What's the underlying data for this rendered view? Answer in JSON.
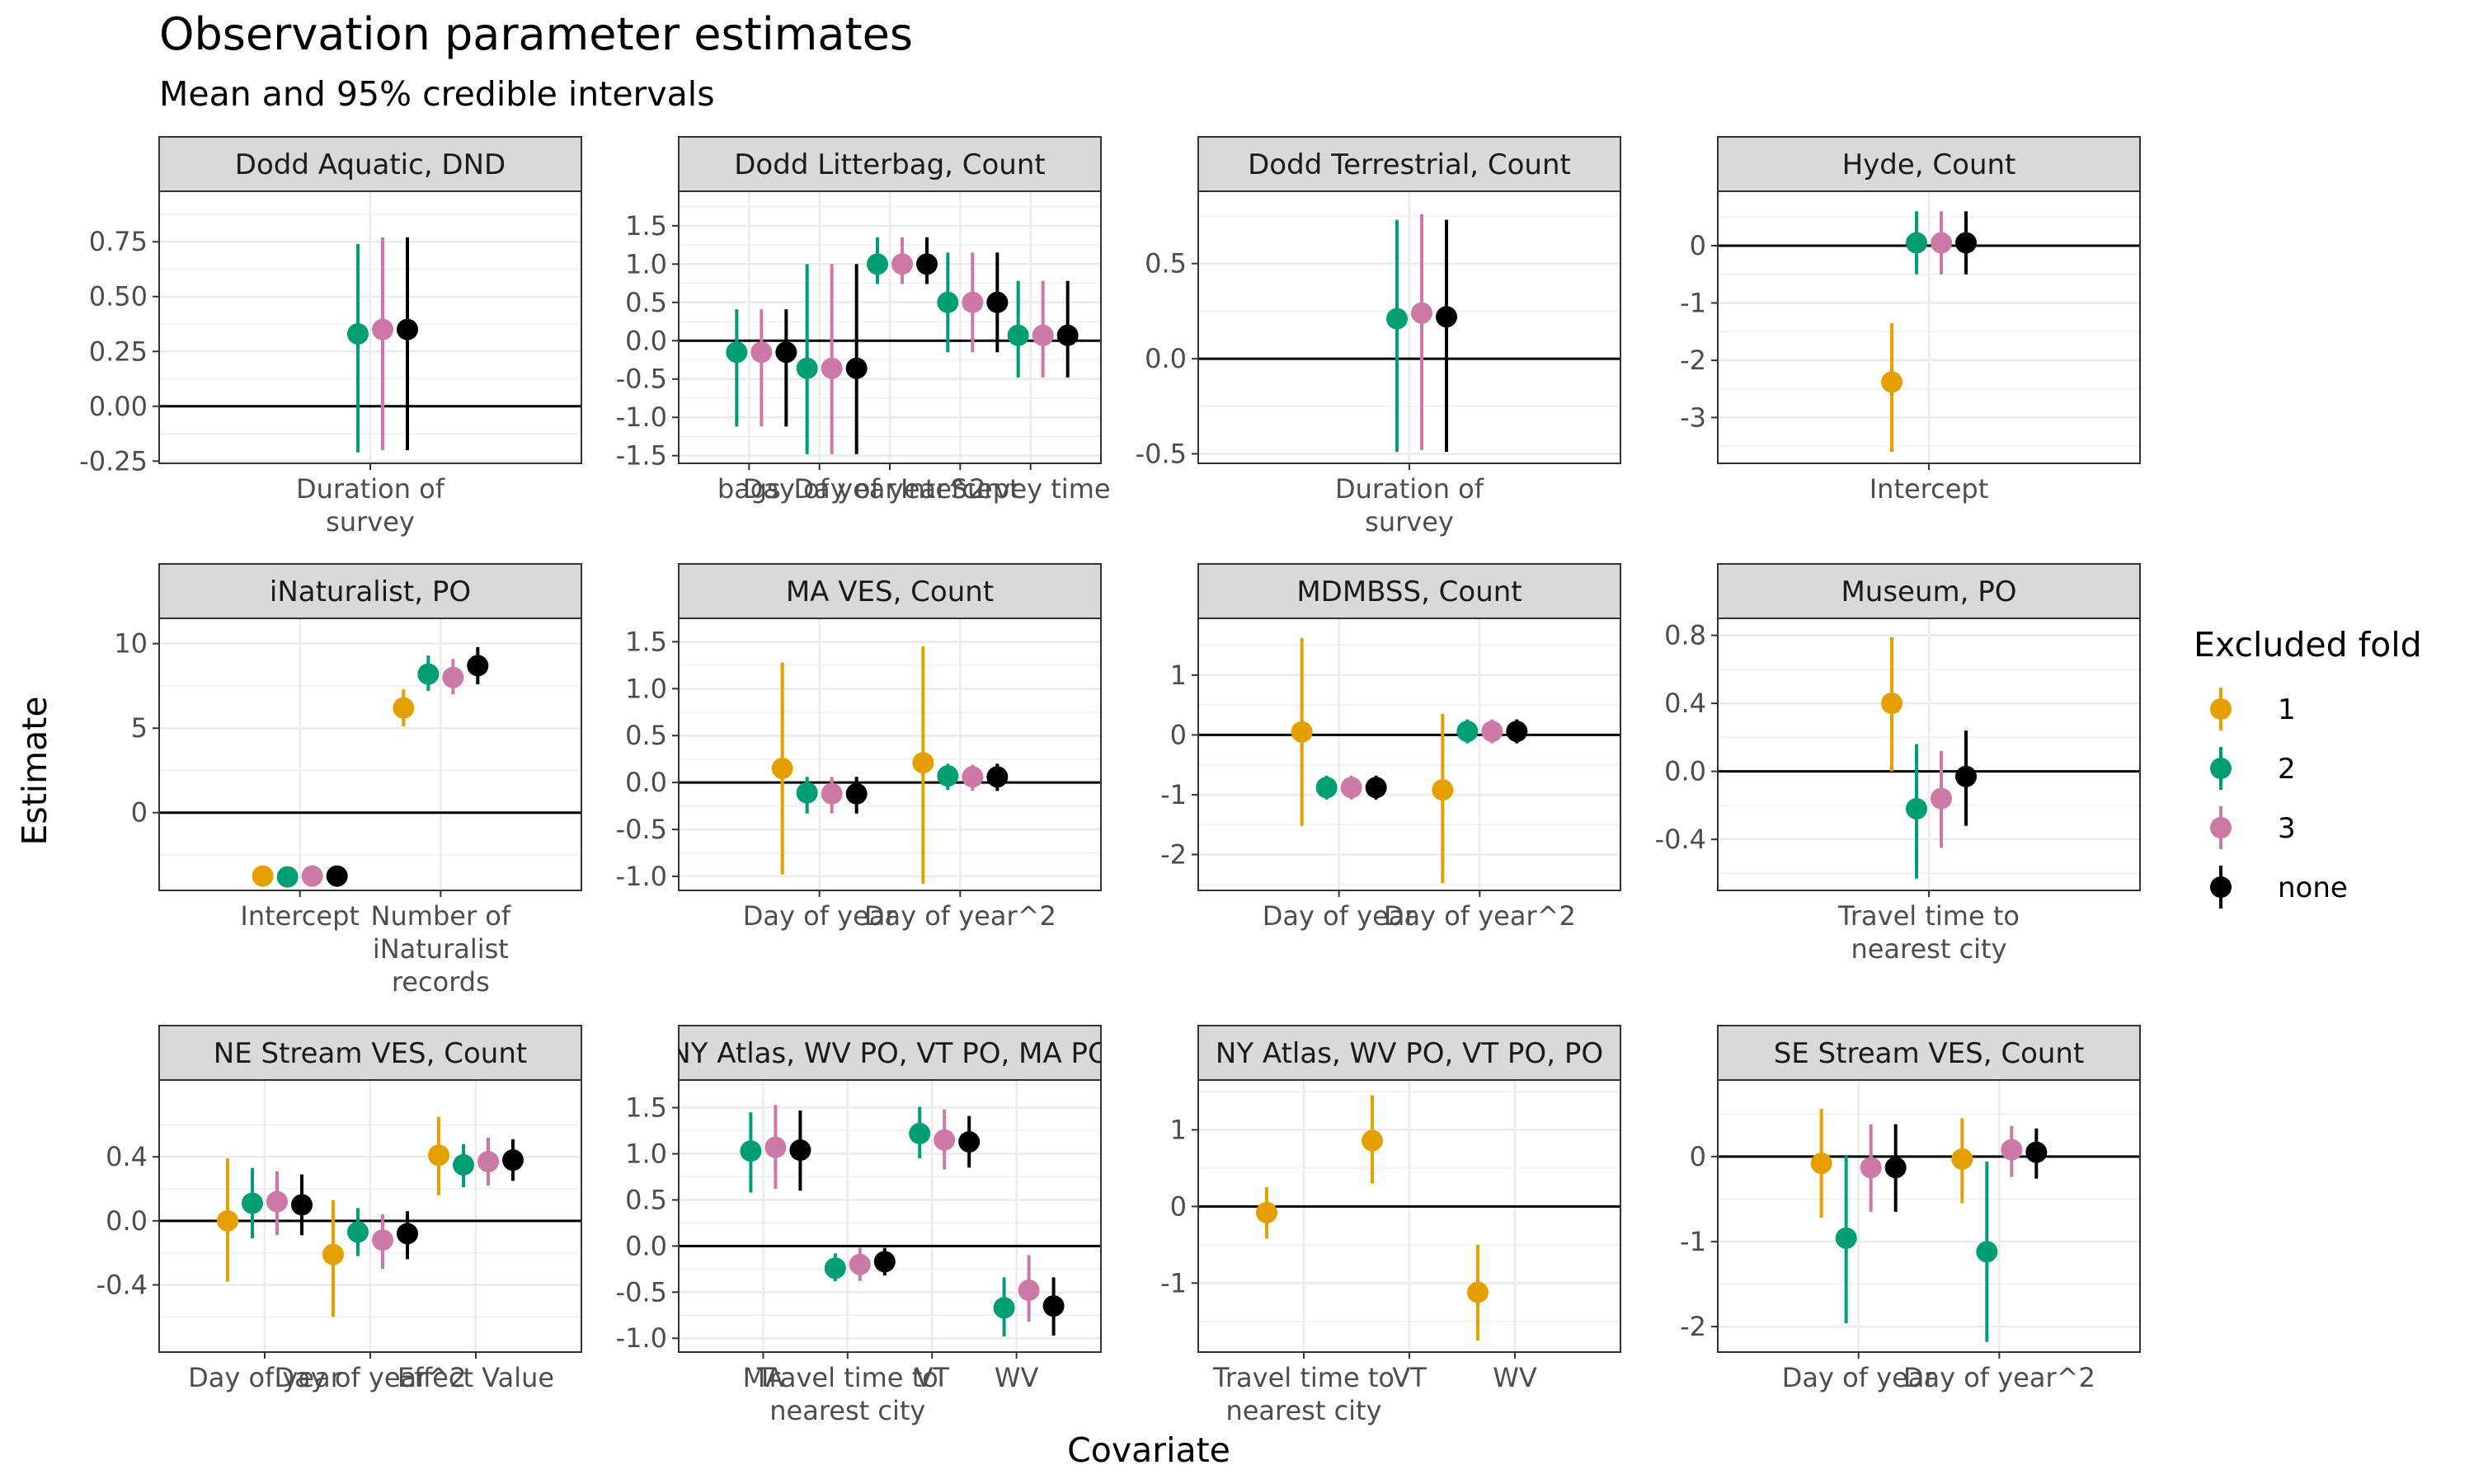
{
  "title": "Observation parameter estimates",
  "subtitle": "Mean and 95% credible intervals",
  "xlabel": "Covariate",
  "ylabel": "Estimate",
  "legend": {
    "title": "Excluded fold",
    "position": "right",
    "entries": [
      {
        "key": "1",
        "label": "1",
        "color": "#E69F00"
      },
      {
        "key": "2",
        "label": "2",
        "color": "#009E73"
      },
      {
        "key": "3",
        "label": "3",
        "color": "#CC79A7"
      },
      {
        "key": "none",
        "label": "none",
        "color": "#000000"
      }
    ]
  },
  "chart_data": [
    {
      "type": "pointrange",
      "title": "Dodd Aquatic, DND",
      "ylim": [
        -0.26,
        0.98
      ],
      "yticks": [
        -0.25,
        0.0,
        0.25,
        0.5,
        0.75
      ],
      "ytick_labels": [
        "-0.25",
        "0.00",
        "0.25",
        "0.50",
        "0.75"
      ],
      "categories": [
        [
          "Duration of",
          "survey"
        ]
      ],
      "points": [
        {
          "cat": 0,
          "fold": "2",
          "mean": 0.33,
          "lo": -0.21,
          "hi": 0.74
        },
        {
          "cat": 0,
          "fold": "3",
          "mean": 0.35,
          "lo": -0.2,
          "hi": 0.77
        },
        {
          "cat": 0,
          "fold": "none",
          "mean": 0.35,
          "lo": -0.2,
          "hi": 0.77
        }
      ]
    },
    {
      "type": "pointrange",
      "title": "Dodd Litterbag, Count",
      "ylim": [
        -1.6,
        1.95
      ],
      "yticks": [
        -1.5,
        -1.0,
        -0.5,
        0.0,
        0.5,
        1.0,
        1.5
      ],
      "ytick_labels": [
        "-1.5",
        "-1.0",
        "-0.5",
        "0.0",
        "0.5",
        "1.0",
        "1.5"
      ],
      "categories": [
        [
          "bags"
        ],
        [
          "Day of year"
        ],
        [
          "Day of year^2"
        ],
        [
          "Intercept"
        ],
        [
          "Survey time"
        ]
      ],
      "points": [
        {
          "cat": 0,
          "fold": "2",
          "mean": -0.15,
          "lo": -1.12,
          "hi": 0.41
        },
        {
          "cat": 0,
          "fold": "3",
          "mean": -0.15,
          "lo": -1.12,
          "hi": 0.41
        },
        {
          "cat": 0,
          "fold": "none",
          "mean": -0.15,
          "lo": -1.12,
          "hi": 0.41
        },
        {
          "cat": 1,
          "fold": "2",
          "mean": -0.36,
          "lo": -1.48,
          "hi": 1.0
        },
        {
          "cat": 1,
          "fold": "3",
          "mean": -0.36,
          "lo": -1.48,
          "hi": 1.0
        },
        {
          "cat": 1,
          "fold": "none",
          "mean": -0.36,
          "lo": -1.48,
          "hi": 1.0
        },
        {
          "cat": 2,
          "fold": "2",
          "mean": 1.0,
          "lo": 0.74,
          "hi": 1.35
        },
        {
          "cat": 2,
          "fold": "3",
          "mean": 1.0,
          "lo": 0.74,
          "hi": 1.35
        },
        {
          "cat": 2,
          "fold": "none",
          "mean": 1.0,
          "lo": 0.74,
          "hi": 1.35
        },
        {
          "cat": 3,
          "fold": "2",
          "mean": 0.5,
          "lo": -0.15,
          "hi": 1.15
        },
        {
          "cat": 3,
          "fold": "3",
          "mean": 0.5,
          "lo": -0.15,
          "hi": 1.15
        },
        {
          "cat": 3,
          "fold": "none",
          "mean": 0.5,
          "lo": -0.15,
          "hi": 1.15
        },
        {
          "cat": 4,
          "fold": "2",
          "mean": 0.07,
          "lo": -0.48,
          "hi": 0.78
        },
        {
          "cat": 4,
          "fold": "3",
          "mean": 0.07,
          "lo": -0.48,
          "hi": 0.78
        },
        {
          "cat": 4,
          "fold": "none",
          "mean": 0.07,
          "lo": -0.48,
          "hi": 0.78
        }
      ]
    },
    {
      "type": "pointrange",
      "title": "Dodd Terrestrial, Count",
      "ylim": [
        -0.55,
        0.88
      ],
      "yticks": [
        -0.5,
        0.0,
        0.5
      ],
      "ytick_labels": [
        "-0.5",
        "0.0",
        "0.5"
      ],
      "categories": [
        [
          "Duration of",
          "survey"
        ]
      ],
      "points": [
        {
          "cat": 0,
          "fold": "2",
          "mean": 0.21,
          "lo": -0.49,
          "hi": 0.73
        },
        {
          "cat": 0,
          "fold": "3",
          "mean": 0.24,
          "lo": -0.48,
          "hi": 0.76
        },
        {
          "cat": 0,
          "fold": "none",
          "mean": 0.22,
          "lo": -0.49,
          "hi": 0.73
        }
      ]
    },
    {
      "type": "pointrange",
      "title": "Hyde, Count",
      "ylim": [
        -3.8,
        0.95
      ],
      "yticks": [
        -3,
        -2,
        -1,
        0
      ],
      "ytick_labels": [
        "-3",
        "-2",
        "-1",
        "0"
      ],
      "categories": [
        [
          "Intercept"
        ]
      ],
      "points": [
        {
          "cat": 0,
          "fold": "1",
          "mean": -2.38,
          "lo": -3.6,
          "hi": -1.35
        },
        {
          "cat": 0,
          "fold": "2",
          "mean": 0.05,
          "lo": -0.5,
          "hi": 0.6
        },
        {
          "cat": 0,
          "fold": "3",
          "mean": 0.05,
          "lo": -0.5,
          "hi": 0.6
        },
        {
          "cat": 0,
          "fold": "none",
          "mean": 0.05,
          "lo": -0.5,
          "hi": 0.6
        }
      ]
    },
    {
      "type": "pointrange",
      "title": "iNaturalist, PO",
      "ylim": [
        -4.6,
        11.5
      ],
      "yticks": [
        0,
        5,
        10
      ],
      "ytick_labels": [
        "0",
        "5",
        "10"
      ],
      "categories": [
        [
          "Intercept"
        ],
        [
          "Number of",
          "iNaturalist",
          "records"
        ]
      ],
      "points": [
        {
          "cat": 0,
          "fold": "1",
          "mean": -3.75,
          "lo": -3.95,
          "hi": -3.55
        },
        {
          "cat": 0,
          "fold": "2",
          "mean": -3.8,
          "lo": -4.0,
          "hi": -3.6
        },
        {
          "cat": 0,
          "fold": "3",
          "mean": -3.75,
          "lo": -3.95,
          "hi": -3.55
        },
        {
          "cat": 0,
          "fold": "none",
          "mean": -3.75,
          "lo": -3.95,
          "hi": -3.55
        },
        {
          "cat": 1,
          "fold": "1",
          "mean": 6.2,
          "lo": 5.1,
          "hi": 7.3
        },
        {
          "cat": 1,
          "fold": "2",
          "mean": 8.2,
          "lo": 7.2,
          "hi": 9.3
        },
        {
          "cat": 1,
          "fold": "3",
          "mean": 8.0,
          "lo": 7.0,
          "hi": 9.1
        },
        {
          "cat": 1,
          "fold": "none",
          "mean": 8.7,
          "lo": 7.6,
          "hi": 9.8
        }
      ]
    },
    {
      "type": "pointrange",
      "title": "MA VES, Count",
      "ylim": [
        -1.15,
        1.75
      ],
      "yticks": [
        -1.0,
        -0.5,
        0.0,
        0.5,
        1.0,
        1.5
      ],
      "ytick_labels": [
        "-1.0",
        "-0.5",
        "0.0",
        "0.5",
        "1.0",
        "1.5"
      ],
      "categories": [
        [
          "Day of year"
        ],
        [
          "Day of year^2"
        ]
      ],
      "points": [
        {
          "cat": 0,
          "fold": "1",
          "mean": 0.15,
          "lo": -0.98,
          "hi": 1.28
        },
        {
          "cat": 0,
          "fold": "2",
          "mean": -0.11,
          "lo": -0.33,
          "hi": 0.06
        },
        {
          "cat": 0,
          "fold": "3",
          "mean": -0.12,
          "lo": -0.33,
          "hi": 0.06
        },
        {
          "cat": 0,
          "fold": "none",
          "mean": -0.12,
          "lo": -0.33,
          "hi": 0.06
        },
        {
          "cat": 1,
          "fold": "1",
          "mean": 0.21,
          "lo": -1.08,
          "hi": 1.45
        },
        {
          "cat": 1,
          "fold": "2",
          "mean": 0.07,
          "lo": -0.08,
          "hi": 0.2
        },
        {
          "cat": 1,
          "fold": "3",
          "mean": 0.06,
          "lo": -0.09,
          "hi": 0.19
        },
        {
          "cat": 1,
          "fold": "none",
          "mean": 0.06,
          "lo": -0.09,
          "hi": 0.2
        }
      ]
    },
    {
      "type": "pointrange",
      "title": "MDMBSS, Count",
      "ylim": [
        -2.6,
        1.95
      ],
      "yticks": [
        -2,
        -1,
        0,
        1
      ],
      "ytick_labels": [
        "-2",
        "-1",
        "0",
        "1"
      ],
      "categories": [
        [
          "Day of year"
        ],
        [
          "Day of year^2"
        ]
      ],
      "points": [
        {
          "cat": 0,
          "fold": "1",
          "mean": 0.05,
          "lo": -1.52,
          "hi": 1.62
        },
        {
          "cat": 0,
          "fold": "2",
          "mean": -0.88,
          "lo": -1.08,
          "hi": -0.68
        },
        {
          "cat": 0,
          "fold": "3",
          "mean": -0.88,
          "lo": -1.08,
          "hi": -0.68
        },
        {
          "cat": 0,
          "fold": "none",
          "mean": -0.88,
          "lo": -1.08,
          "hi": -0.68
        },
        {
          "cat": 1,
          "fold": "1",
          "mean": -0.92,
          "lo": -2.48,
          "hi": 0.35
        },
        {
          "cat": 1,
          "fold": "2",
          "mean": 0.06,
          "lo": -0.14,
          "hi": 0.26
        },
        {
          "cat": 1,
          "fold": "3",
          "mean": 0.06,
          "lo": -0.14,
          "hi": 0.26
        },
        {
          "cat": 1,
          "fold": "none",
          "mean": 0.06,
          "lo": -0.14,
          "hi": 0.26
        }
      ]
    },
    {
      "type": "pointrange",
      "title": "Museum, PO",
      "ylim": [
        -0.7,
        0.9
      ],
      "yticks": [
        -0.4,
        0.0,
        0.4,
        0.8
      ],
      "ytick_labels": [
        "-0.4",
        "0.0",
        "0.4",
        "0.8"
      ],
      "categories": [
        [
          "Travel time to",
          "nearest city"
        ]
      ],
      "points": [
        {
          "cat": 0,
          "fold": "1",
          "mean": 0.4,
          "lo": 0.0,
          "hi": 0.79
        },
        {
          "cat": 0,
          "fold": "2",
          "mean": -0.22,
          "lo": -0.63,
          "hi": 0.16
        },
        {
          "cat": 0,
          "fold": "3",
          "mean": -0.16,
          "lo": -0.45,
          "hi": 0.12
        },
        {
          "cat": 0,
          "fold": "none",
          "mean": -0.03,
          "lo": -0.32,
          "hi": 0.24
        }
      ]
    },
    {
      "type": "pointrange",
      "title": "NE Stream VES, Count",
      "ylim": [
        -0.82,
        0.88
      ],
      "yticks": [
        -0.4,
        0.0,
        0.4
      ],
      "ytick_labels": [
        "-0.4",
        "0.0",
        "0.4"
      ],
      "categories": [
        [
          "Day of year"
        ],
        [
          "Day of year^2"
        ],
        [
          "Effect Value"
        ]
      ],
      "points": [
        {
          "cat": 0,
          "fold": "1",
          "mean": 0.0,
          "lo": -0.38,
          "hi": 0.39
        },
        {
          "cat": 0,
          "fold": "2",
          "mean": 0.11,
          "lo": -0.11,
          "hi": 0.33
        },
        {
          "cat": 0,
          "fold": "3",
          "mean": 0.12,
          "lo": -0.09,
          "hi": 0.31
        },
        {
          "cat": 0,
          "fold": "none",
          "mean": 0.1,
          "lo": -0.09,
          "hi": 0.29
        },
        {
          "cat": 1,
          "fold": "1",
          "mean": -0.21,
          "lo": -0.6,
          "hi": 0.13
        },
        {
          "cat": 1,
          "fold": "2",
          "mean": -0.07,
          "lo": -0.22,
          "hi": 0.08
        },
        {
          "cat": 1,
          "fold": "3",
          "mean": -0.12,
          "lo": -0.3,
          "hi": 0.04
        },
        {
          "cat": 1,
          "fold": "none",
          "mean": -0.08,
          "lo": -0.24,
          "hi": 0.06
        },
        {
          "cat": 2,
          "fold": "1",
          "mean": 0.41,
          "lo": 0.16,
          "hi": 0.65
        },
        {
          "cat": 2,
          "fold": "2",
          "mean": 0.35,
          "lo": 0.21,
          "hi": 0.48
        },
        {
          "cat": 2,
          "fold": "3",
          "mean": 0.37,
          "lo": 0.22,
          "hi": 0.52
        },
        {
          "cat": 2,
          "fold": "none",
          "mean": 0.38,
          "lo": 0.25,
          "hi": 0.51
        }
      ]
    },
    {
      "type": "pointrange",
      "title": "NY Atlas, WV PO, VT PO, MA PO",
      "ylim": [
        -1.15,
        1.8
      ],
      "yticks": [
        -1.0,
        -0.5,
        0.0,
        0.5,
        1.0,
        1.5
      ],
      "ytick_labels": [
        "-1.0",
        "-0.5",
        "0.0",
        "0.5",
        "1.0",
        "1.5"
      ],
      "categories": [
        [
          "MA"
        ],
        [
          "Travel time to",
          "nearest city"
        ],
        [
          "VT"
        ],
        [
          "WV"
        ]
      ],
      "points": [
        {
          "cat": 0,
          "fold": "2",
          "mean": 1.03,
          "lo": 0.58,
          "hi": 1.45
        },
        {
          "cat": 0,
          "fold": "3",
          "mean": 1.07,
          "lo": 0.62,
          "hi": 1.53
        },
        {
          "cat": 0,
          "fold": "none",
          "mean": 1.04,
          "lo": 0.6,
          "hi": 1.47
        },
        {
          "cat": 1,
          "fold": "2",
          "mean": -0.24,
          "lo": -0.38,
          "hi": -0.08
        },
        {
          "cat": 1,
          "fold": "3",
          "mean": -0.2,
          "lo": -0.38,
          "hi": -0.02
        },
        {
          "cat": 1,
          "fold": "none",
          "mean": -0.17,
          "lo": -0.32,
          "hi": -0.02
        },
        {
          "cat": 2,
          "fold": "2",
          "mean": 1.22,
          "lo": 0.95,
          "hi": 1.51
        },
        {
          "cat": 2,
          "fold": "3",
          "mean": 1.15,
          "lo": 0.83,
          "hi": 1.48
        },
        {
          "cat": 2,
          "fold": "none",
          "mean": 1.13,
          "lo": 0.85,
          "hi": 1.41
        },
        {
          "cat": 3,
          "fold": "2",
          "mean": -0.67,
          "lo": -0.98,
          "hi": -0.34
        },
        {
          "cat": 3,
          "fold": "3",
          "mean": -0.48,
          "lo": -0.82,
          "hi": -0.1
        },
        {
          "cat": 3,
          "fold": "none",
          "mean": -0.65,
          "lo": -0.97,
          "hi": -0.34
        }
      ]
    },
    {
      "type": "pointrange",
      "title": "NY Atlas, WV PO, VT PO, PO",
      "ylim": [
        -1.9,
        1.65
      ],
      "yticks": [
        -1,
        0,
        1
      ],
      "ytick_labels": [
        "-1",
        "0",
        "1"
      ],
      "categories": [
        [
          "Travel time to",
          "nearest city"
        ],
        [
          "VT"
        ],
        [
          "WV"
        ]
      ],
      "points": [
        {
          "cat": 0,
          "fold": "1",
          "mean": -0.08,
          "lo": -0.42,
          "hi": 0.25
        },
        {
          "cat": 1,
          "fold": "1",
          "mean": 0.86,
          "lo": 0.3,
          "hi": 1.45
        },
        {
          "cat": 2,
          "fold": "1",
          "mean": -1.12,
          "lo": -1.75,
          "hi": -0.5
        }
      ]
    },
    {
      "type": "pointrange",
      "title": "SE Stream VES, Count",
      "ylim": [
        -2.3,
        0.9
      ],
      "yticks": [
        -2,
        -1,
        0
      ],
      "ytick_labels": [
        "-2",
        "-1",
        "0"
      ],
      "categories": [
        [
          "Day of year"
        ],
        [
          "Day of year^2"
        ]
      ],
      "points": [
        {
          "cat": 0,
          "fold": "1",
          "mean": -0.08,
          "lo": -0.72,
          "hi": 0.56
        },
        {
          "cat": 0,
          "fold": "2",
          "mean": -0.96,
          "lo": -1.96,
          "hi": 0.02
        },
        {
          "cat": 0,
          "fold": "3",
          "mean": -0.13,
          "lo": -0.65,
          "hi": 0.38
        },
        {
          "cat": 0,
          "fold": "none",
          "mean": -0.13,
          "lo": -0.65,
          "hi": 0.38
        },
        {
          "cat": 1,
          "fold": "1",
          "mean": -0.03,
          "lo": -0.55,
          "hi": 0.45
        },
        {
          "cat": 1,
          "fold": "2",
          "mean": -1.12,
          "lo": -2.18,
          "hi": -0.06
        },
        {
          "cat": 1,
          "fold": "3",
          "mean": 0.08,
          "lo": -0.24,
          "hi": 0.36
        },
        {
          "cat": 1,
          "fold": "none",
          "mean": 0.05,
          "lo": -0.26,
          "hi": 0.33
        }
      ]
    }
  ]
}
